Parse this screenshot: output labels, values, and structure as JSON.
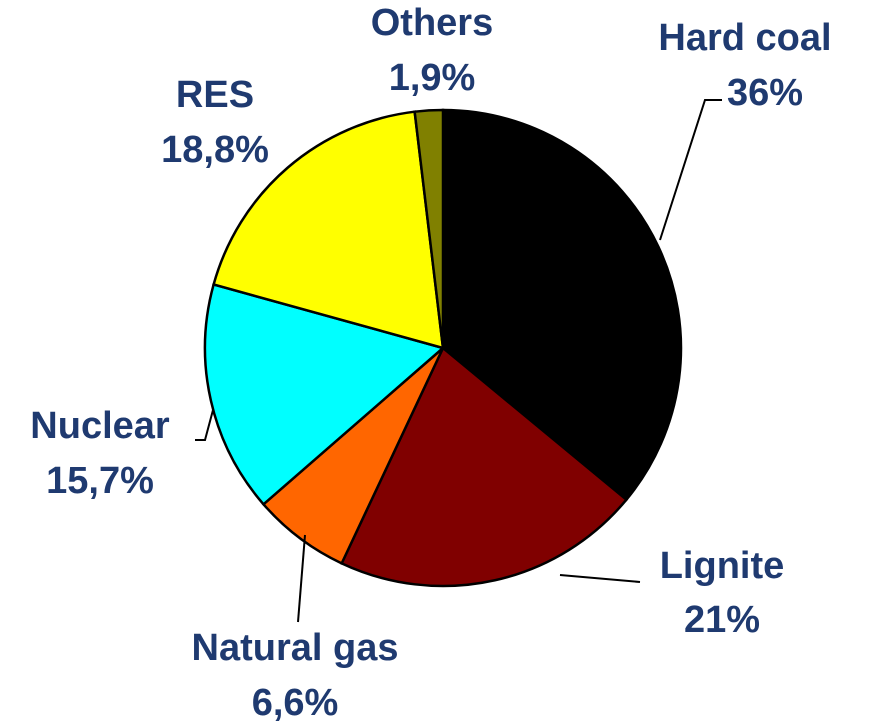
{
  "chart_data": {
    "type": "pie",
    "categories": [
      "Hard coal",
      "Lignite",
      "Natural gas",
      "Nuclear",
      "RES",
      "Others"
    ],
    "values": [
      36,
      21,
      6.6,
      15.7,
      18.8,
      1.9
    ],
    "value_labels": [
      "36%",
      "21%",
      "6,6%",
      "15,7%",
      "18,8%",
      "1,9%"
    ],
    "colors": [
      "#000000",
      "#800000",
      "#ff6600",
      "#00ffff",
      "#ffff00",
      "#808000"
    ]
  }
}
